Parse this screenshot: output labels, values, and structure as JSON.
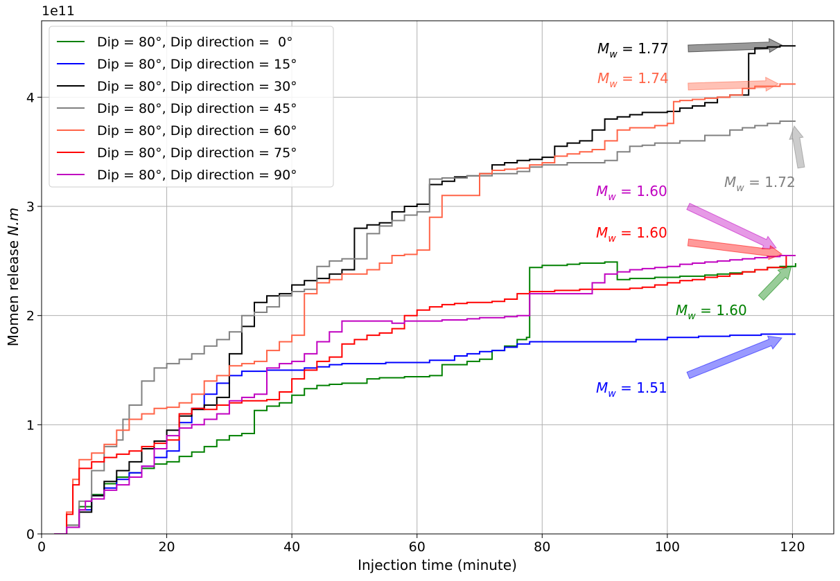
{
  "chart_data": {
    "type": "line",
    "xlabel": "Injection time (minute)",
    "ylabel": "Momen release N.m",
    "ylabel_plain": "Momen release ",
    "ylabel_italic": "N.m",
    "y_offset_label": "1e11",
    "xlim": [
      0,
      126.6
    ],
    "ylim": [
      0,
      4.7
    ],
    "xticks": [
      0,
      20,
      40,
      60,
      80,
      100,
      120
    ],
    "yticks": [
      0,
      1,
      2,
      3,
      4
    ],
    "grid": true,
    "legend_position": "top-left",
    "series": [
      {
        "name": "Dip = 80°, Dip direction =  0°",
        "color": "#008000",
        "x": [
          2,
          4,
          6,
          8,
          10,
          12,
          14,
          16,
          18,
          20,
          22,
          24,
          26,
          28,
          30,
          32,
          34,
          36,
          38,
          40,
          42,
          44,
          46,
          48,
          50,
          52,
          54,
          56,
          58,
          60,
          62,
          64,
          66,
          68,
          70,
          72,
          74,
          76,
          77.5,
          78,
          80,
          82,
          84,
          86,
          88,
          90,
          92,
          94,
          96,
          98,
          100,
          102,
          104,
          106,
          108,
          110,
          112,
          114,
          116,
          118,
          120.5
        ],
        "y": [
          0,
          0.08,
          0.25,
          0.36,
          0.46,
          0.52,
          0.56,
          0.6,
          0.64,
          0.66,
          0.71,
          0.75,
          0.8,
          0.86,
          0.9,
          0.92,
          1.13,
          1.17,
          1.2,
          1.27,
          1.33,
          1.36,
          1.37,
          1.38,
          1.38,
          1.42,
          1.43,
          1.43,
          1.44,
          1.44,
          1.45,
          1.55,
          1.55,
          1.58,
          1.6,
          1.68,
          1.72,
          1.78,
          1.8,
          2.44,
          2.46,
          2.46,
          2.47,
          2.48,
          2.48,
          2.49,
          2.33,
          2.34,
          2.34,
          2.35,
          2.35,
          2.36,
          2.36,
          2.37,
          2.38,
          2.39,
          2.4,
          2.42,
          2.44,
          2.45,
          2.48
        ]
      },
      {
        "name": "Dip = 80°, Dip direction = 15°",
        "color": "#0000ff",
        "x": [
          2,
          4,
          6,
          8,
          10,
          12,
          14,
          16,
          18,
          20,
          22,
          24,
          26,
          28,
          30,
          32,
          34,
          36,
          38,
          40,
          42,
          44,
          46,
          48,
          50,
          55,
          60,
          62,
          64,
          66,
          68,
          70,
          72,
          74,
          76,
          78,
          80,
          85,
          90,
          95,
          100,
          105,
          110,
          115,
          120.5
        ],
        "y": [
          0,
          0.06,
          0.22,
          0.35,
          0.42,
          0.5,
          0.56,
          0.62,
          0.7,
          0.76,
          1.02,
          1.15,
          1.28,
          1.38,
          1.45,
          1.49,
          1.49,
          1.5,
          1.5,
          1.5,
          1.52,
          1.53,
          1.55,
          1.56,
          1.56,
          1.57,
          1.57,
          1.59,
          1.59,
          1.63,
          1.65,
          1.67,
          1.68,
          1.71,
          1.74,
          1.76,
          1.76,
          1.76,
          1.76,
          1.78,
          1.8,
          1.81,
          1.82,
          1.83,
          1.83
        ]
      },
      {
        "name": "Dip = 80°, Dip direction = 30°",
        "color": "#000000",
        "x": [
          2,
          4,
          6,
          8,
          10,
          12,
          14,
          16,
          18,
          20,
          22,
          24,
          26,
          28,
          30,
          32,
          34,
          36,
          38,
          40,
          42,
          44,
          46,
          48,
          50,
          52,
          54,
          56,
          58,
          60,
          62,
          64,
          66,
          68,
          70,
          72,
          74,
          76,
          78,
          80,
          82,
          84,
          86,
          88,
          90,
          92,
          94,
          96,
          98,
          100,
          102,
          104,
          106,
          108,
          110,
          112,
          113,
          114,
          116,
          118,
          120.5
        ],
        "y": [
          0,
          0.06,
          0.2,
          0.35,
          0.48,
          0.58,
          0.66,
          0.78,
          0.85,
          0.95,
          1.08,
          1.14,
          1.18,
          1.25,
          1.65,
          1.9,
          2.12,
          2.18,
          2.2,
          2.28,
          2.32,
          2.34,
          2.38,
          2.42,
          2.8,
          2.83,
          2.85,
          2.95,
          3.0,
          3.02,
          3.2,
          3.23,
          3.27,
          3.28,
          3.3,
          3.38,
          3.4,
          3.42,
          3.43,
          3.45,
          3.55,
          3.58,
          3.6,
          3.7,
          3.8,
          3.82,
          3.84,
          3.86,
          3.86,
          3.87,
          3.9,
          3.92,
          3.95,
          4.0,
          4.02,
          4.02,
          4.4,
          4.45,
          4.46,
          4.47,
          4.47
        ]
      },
      {
        "name": "Dip = 80°, Dip direction = 45°",
        "color": "#808080",
        "x": [
          2,
          4,
          6,
          8,
          10,
          12,
          13,
          14,
          16,
          18,
          20,
          22,
          24,
          26,
          28,
          30,
          32,
          34,
          36,
          38,
          40,
          42,
          44,
          46,
          48,
          50,
          52,
          54,
          56,
          58,
          60,
          62,
          64,
          66,
          68,
          70,
          72,
          74,
          76,
          78,
          80,
          82,
          84,
          86,
          88,
          90,
          92,
          94,
          96,
          98,
          100,
          102,
          104,
          106,
          108,
          110,
          112,
          114,
          116,
          118,
          120.5
        ],
        "y": [
          0,
          0.08,
          0.3,
          0.58,
          0.8,
          0.86,
          1.05,
          1.18,
          1.4,
          1.52,
          1.56,
          1.6,
          1.65,
          1.72,
          1.78,
          1.85,
          2.0,
          2.03,
          2.08,
          2.18,
          2.22,
          2.24,
          2.45,
          2.5,
          2.52,
          2.52,
          2.75,
          2.82,
          2.87,
          2.92,
          2.95,
          3.25,
          3.26,
          3.26,
          3.28,
          3.28,
          3.3,
          3.3,
          3.32,
          3.36,
          3.38,
          3.38,
          3.4,
          3.4,
          3.4,
          3.42,
          3.5,
          3.55,
          3.56,
          3.58,
          3.58,
          3.6,
          3.6,
          3.65,
          3.65,
          3.7,
          3.72,
          3.74,
          3.76,
          3.78,
          3.78
        ]
      },
      {
        "name": "Dip = 80°, Dip direction = 60°",
        "color": "#ff6347",
        "x": [
          2,
          4,
          5,
          6,
          8,
          10,
          12,
          14,
          16,
          18,
          20,
          22,
          24,
          26,
          28,
          30,
          32,
          34,
          36,
          38,
          40,
          42,
          44,
          46,
          48,
          50,
          52,
          54,
          56,
          58,
          60,
          62,
          64,
          66,
          68,
          70,
          72,
          74,
          76,
          78,
          80,
          82,
          84,
          86,
          88,
          90,
          92,
          94,
          96,
          98,
          100,
          101,
          102,
          104,
          106,
          108,
          110,
          112,
          114,
          116,
          118,
          120.5
        ],
        "y": [
          0,
          0.2,
          0.5,
          0.68,
          0.74,
          0.82,
          0.95,
          1.05,
          1.1,
          1.15,
          1.16,
          1.2,
          1.28,
          1.4,
          1.45,
          1.54,
          1.56,
          1.58,
          1.68,
          1.76,
          1.82,
          2.2,
          2.3,
          2.33,
          2.38,
          2.38,
          2.42,
          2.48,
          2.55,
          2.56,
          2.6,
          2.9,
          3.1,
          3.1,
          3.1,
          3.3,
          3.33,
          3.34,
          3.35,
          3.38,
          3.4,
          3.46,
          3.48,
          3.5,
          3.52,
          3.6,
          3.7,
          3.72,
          3.72,
          3.74,
          3.76,
          3.96,
          3.97,
          3.98,
          3.99,
          4.0,
          4.02,
          4.08,
          4.1,
          4.1,
          4.12,
          4.12
        ]
      },
      {
        "name": "Dip = 80°, Dip direction = 75°",
        "color": "#ff0000",
        "x": [
          2,
          4,
          5,
          6,
          8,
          10,
          12,
          14,
          16,
          18,
          20,
          22,
          24,
          26,
          28,
          30,
          32,
          34,
          36,
          38,
          40,
          42,
          44,
          46,
          48,
          50,
          52,
          54,
          56,
          58,
          60,
          62,
          64,
          66,
          68,
          70,
          72,
          74,
          76,
          78,
          80,
          82,
          84,
          86,
          88,
          90,
          92,
          94,
          96,
          98,
          100,
          102,
          104,
          106,
          108,
          110,
          112,
          114,
          116,
          118,
          119,
          120.5
        ],
        "y": [
          0,
          0.18,
          0.45,
          0.6,
          0.66,
          0.7,
          0.73,
          0.76,
          0.8,
          0.83,
          0.86,
          1.1,
          1.15,
          1.14,
          1.18,
          1.2,
          1.22,
          1.22,
          1.23,
          1.3,
          1.42,
          1.5,
          1.58,
          1.62,
          1.74,
          1.78,
          1.82,
          1.84,
          1.88,
          2.0,
          2.05,
          2.08,
          2.1,
          2.11,
          2.12,
          2.12,
          2.13,
          2.15,
          2.2,
          2.22,
          2.22,
          2.23,
          2.23,
          2.24,
          2.24,
          2.24,
          2.24,
          2.25,
          2.26,
          2.28,
          2.3,
          2.32,
          2.33,
          2.35,
          2.36,
          2.38,
          2.4,
          2.42,
          2.44,
          2.44,
          2.55,
          2.55
        ]
      },
      {
        "name": "Dip = 80°, Dip direction = 90°",
        "color": "#c000c0",
        "x": [
          2,
          4,
          6,
          7,
          8,
          10,
          12,
          14,
          16,
          18,
          20,
          22,
          24,
          26,
          28,
          30,
          32,
          34,
          36,
          38,
          40,
          42,
          44,
          46,
          48,
          50,
          52,
          54,
          56,
          58,
          60,
          62,
          64,
          66,
          68,
          70,
          72,
          74,
          76,
          78,
          80,
          82,
          84,
          86,
          88,
          90,
          92,
          94,
          96,
          98,
          100,
          102,
          104,
          106,
          108,
          110,
          112,
          114,
          116,
          118,
          120.5
        ],
        "y": [
          0,
          0.06,
          0.22,
          0.3,
          0.32,
          0.4,
          0.45,
          0.52,
          0.62,
          0.78,
          0.9,
          0.97,
          1.0,
          1.05,
          1.1,
          1.22,
          1.25,
          1.28,
          1.52,
          1.56,
          1.58,
          1.65,
          1.76,
          1.85,
          1.95,
          1.95,
          1.95,
          1.95,
          1.93,
          1.95,
          1.95,
          1.95,
          1.96,
          1.96,
          1.97,
          1.98,
          1.98,
          1.99,
          2.0,
          2.2,
          2.2,
          2.2,
          2.2,
          2.2,
          2.3,
          2.38,
          2.4,
          2.42,
          2.43,
          2.44,
          2.45,
          2.47,
          2.48,
          2.49,
          2.5,
          2.51,
          2.52,
          2.53,
          2.54,
          2.55,
          2.55
        ]
      }
    ],
    "annotations": [
      {
        "label": "1.77",
        "color": "#000000"
      },
      {
        "label": "1.74",
        "color": "#ff6347"
      },
      {
        "label": "1.72",
        "color": "#808080"
      },
      {
        "label": "1.60",
        "color": "#c000c0"
      },
      {
        "label": "1.60",
        "color": "#ff0000"
      },
      {
        "label": "1.60",
        "color": "#008000"
      },
      {
        "label": "1.51",
        "color": "#0000ff"
      }
    ]
  }
}
